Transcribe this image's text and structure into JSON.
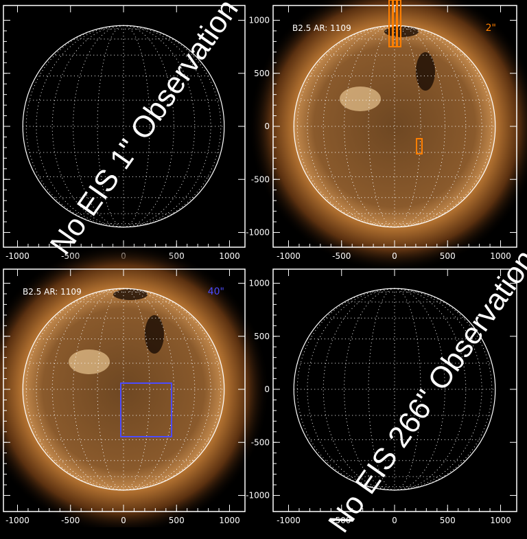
{
  "panels": [
    {
      "id": "eis-1",
      "message": "No EIS 1\" Observation",
      "has_image": false
    },
    {
      "id": "eis-2",
      "label": "B2.5 AR: 1109",
      "resolution": "2\"",
      "resolution_color": "#ff7f00",
      "has_image": true
    },
    {
      "id": "eis-40",
      "label": "B2.5 AR: 1109",
      "resolution": "40\"",
      "resolution_color": "#4b4bff",
      "has_image": true
    },
    {
      "id": "eis-266",
      "message": "No EIS 266\" Observation",
      "has_image": false
    }
  ],
  "axis_ticks": {
    "x": [
      "-1000",
      "-500",
      "0",
      "500",
      "1000"
    ],
    "y": [
      "1000",
      "500",
      "0",
      "-500",
      "-1000"
    ]
  },
  "colors": {
    "corona": "#c08040",
    "disk": "#8a5a2c",
    "grid": "#ffffff"
  }
}
